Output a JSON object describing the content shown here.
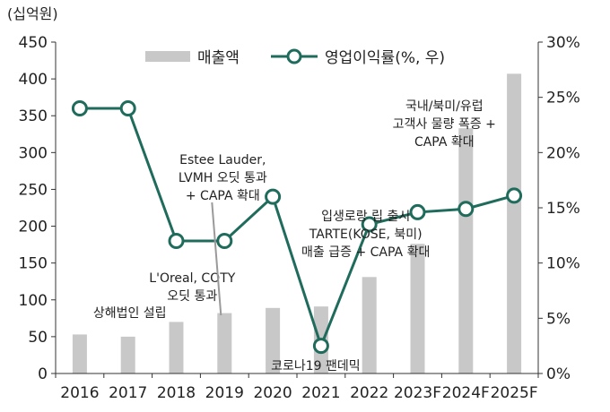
{
  "chart_data": {
    "type": "bar",
    "left_unit": "(십억원)",
    "categories": [
      "2016",
      "2017",
      "2018",
      "2019",
      "2020",
      "2021",
      "2022",
      "2023F",
      "2024F",
      "2025F"
    ],
    "series": [
      {
        "name": "매출액",
        "type": "bar",
        "axis": "left",
        "values": [
          53,
          50,
          70,
          82,
          89,
          91,
          131,
          176,
          333,
          407
        ]
      },
      {
        "name": "영업이익률(%, 우)",
        "type": "line",
        "axis": "right",
        "values": [
          24,
          24,
          12,
          12,
          16,
          2.5,
          13.5,
          14.6,
          14.9,
          16.1
        ]
      }
    ],
    "left_axis": {
      "min": 0,
      "max": 450,
      "ticks": [
        0,
        50,
        100,
        150,
        200,
        250,
        300,
        350,
        400,
        450
      ]
    },
    "right_axis": {
      "min": 0,
      "max": 30,
      "ticks": [
        "0%",
        "5%",
        "10%",
        "15%",
        "20%",
        "25%",
        "30%"
      ]
    },
    "annotations": [
      {
        "category": "2017",
        "lines": [
          "상해법인 설립"
        ]
      },
      {
        "category": "2019",
        "lines": [
          "L'Oreal, COTY",
          "오딧 통과"
        ]
      },
      {
        "category": "2019",
        "lines": [
          "Estee Lauder,",
          "LVMH 오딧 통과",
          "+ CAPA 확대"
        ]
      },
      {
        "category": "2021",
        "lines": [
          "코로나19 팬데믹"
        ]
      },
      {
        "category": "2022",
        "lines": [
          "입생로랑 립 출시",
          "TARTE(KOSE, 북미)",
          "매출 급증 + CAPA 확대"
        ]
      },
      {
        "category": "2024F",
        "lines": [
          "국내/북미/유럽",
          "고객사 물량 폭증 +",
          "CAPA 확대"
        ]
      }
    ],
    "colors": {
      "bar": "#c8c8c8",
      "line": "#1f6b5c",
      "axis": "#333333"
    },
    "legend_position": "top-center",
    "grid": false
  }
}
